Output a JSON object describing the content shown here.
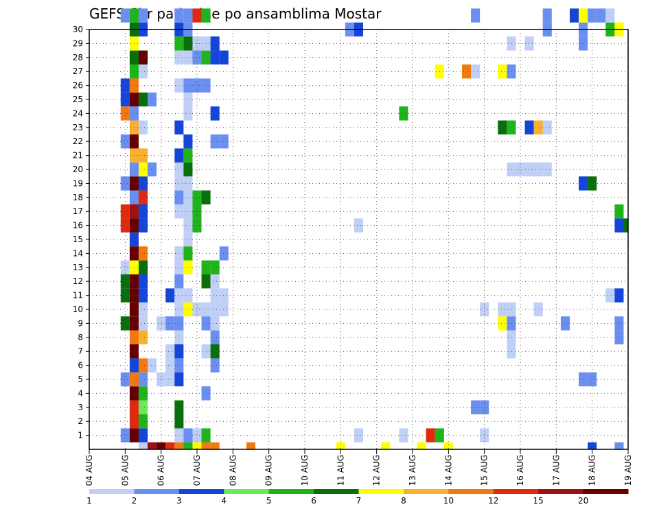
{
  "chart_data": {
    "type": "heatmap",
    "title": "GEFS 6hr padavine po ansamblima Mostar",
    "xlabel": "",
    "ylabel": "",
    "x_ticks": [
      "04 AUG",
      "05 AUG",
      "06 AUG",
      "07 AUG",
      "08 AUG",
      "09 AUG",
      "10 AUG",
      "11 AUG",
      "12 AUG",
      "13 AUG",
      "14 AUG",
      "15 AUG",
      "16 AUG",
      "17 AUG",
      "18 AUG",
      "19 AUG"
    ],
    "y_ticks": [
      "1",
      "2",
      "3",
      "4",
      "5",
      "6",
      "7",
      "8",
      "9",
      "10",
      "11",
      "12",
      "13",
      "14",
      "15",
      "16",
      "17",
      "18",
      "19",
      "20",
      "21",
      "22",
      "23",
      "24",
      "25",
      "26",
      "27",
      "28",
      "29",
      "30"
    ],
    "x_range": [
      0,
      60
    ],
    "y_range": [
      0,
      30
    ],
    "step_per_cell": "6hr",
    "grid": "dotted",
    "colorbar": {
      "placement": "bottom",
      "labels": [
        "1",
        "2",
        "3",
        "4",
        "5",
        "6",
        "7",
        "8",
        "10",
        "12",
        "15",
        "20"
      ],
      "colors": [
        "#bfcff5",
        "#6a8ff0",
        "#1444d8",
        "#6de85a",
        "#1fb31c",
        "#0a6e0a",
        "#ffff00",
        "#f8b030",
        "#f07a10",
        "#e02a10",
        "#a01010",
        "#640000"
      ]
    },
    "cells": [
      [
        6,
        0,
        0
      ],
      [
        7,
        0,
        1
      ],
      [
        7,
        0,
        10
      ],
      [
        8,
        0,
        11
      ],
      [
        9,
        0,
        9
      ],
      [
        10,
        0,
        8
      ],
      [
        11,
        0,
        4
      ],
      [
        12,
        0,
        6
      ],
      [
        13,
        0,
        8
      ],
      [
        14,
        0,
        8
      ],
      [
        18,
        0,
        8
      ],
      [
        28,
        0,
        6
      ],
      [
        33,
        0,
        6
      ],
      [
        37,
        0,
        6
      ],
      [
        40,
        0,
        6
      ],
      [
        56,
        0,
        2
      ],
      [
        59,
        0,
        1
      ],
      [
        4,
        1,
        1
      ],
      [
        5,
        1,
        11
      ],
      [
        6,
        1,
        2
      ],
      [
        10,
        1,
        0
      ],
      [
        11,
        1,
        1
      ],
      [
        12,
        1,
        0
      ],
      [
        13,
        1,
        4
      ],
      [
        30,
        1,
        0
      ],
      [
        35,
        1,
        0
      ],
      [
        38,
        1,
        9
      ],
      [
        39,
        1,
        4
      ],
      [
        44,
        1,
        0
      ],
      [
        5,
        2,
        9
      ],
      [
        6,
        2,
        4
      ],
      [
        10,
        2,
        5
      ],
      [
        5,
        3,
        9
      ],
      [
        6,
        3,
        3
      ],
      [
        10,
        3,
        5
      ],
      [
        43,
        3,
        1
      ],
      [
        44,
        3,
        1
      ],
      [
        5,
        4,
        11
      ],
      [
        6,
        4,
        4
      ],
      [
        13,
        4,
        1
      ],
      [
        4,
        5,
        1
      ],
      [
        5,
        5,
        8
      ],
      [
        6,
        5,
        1
      ],
      [
        8,
        5,
        0
      ],
      [
        9,
        5,
        0
      ],
      [
        10,
        5,
        2
      ],
      [
        55,
        5,
        1
      ],
      [
        56,
        5,
        1
      ],
      [
        5,
        6,
        2
      ],
      [
        6,
        6,
        8
      ],
      [
        7,
        6,
        0
      ],
      [
        9,
        6,
        0
      ],
      [
        10,
        6,
        1
      ],
      [
        14,
        6,
        1
      ],
      [
        5,
        7,
        11
      ],
      [
        9,
        7,
        0
      ],
      [
        10,
        7,
        2
      ],
      [
        13,
        7,
        0
      ],
      [
        14,
        7,
        5
      ],
      [
        47,
        7,
        0
      ],
      [
        5,
        8,
        8
      ],
      [
        6,
        8,
        7
      ],
      [
        10,
        8,
        0
      ],
      [
        14,
        8,
        1
      ],
      [
        47,
        8,
        0
      ],
      [
        59,
        8,
        1
      ],
      [
        4,
        9,
        5
      ],
      [
        5,
        9,
        11
      ],
      [
        6,
        9,
        0
      ],
      [
        8,
        9,
        0
      ],
      [
        9,
        9,
        1
      ],
      [
        10,
        9,
        1
      ],
      [
        13,
        9,
        1
      ],
      [
        14,
        9,
        0
      ],
      [
        46,
        9,
        6
      ],
      [
        47,
        9,
        1
      ],
      [
        53,
        9,
        1
      ],
      [
        59,
        9,
        1
      ],
      [
        5,
        10,
        11
      ],
      [
        6,
        10,
        0
      ],
      [
        10,
        10,
        0
      ],
      [
        11,
        10,
        6
      ],
      [
        12,
        10,
        0
      ],
      [
        13,
        10,
        0
      ],
      [
        14,
        10,
        0
      ],
      [
        15,
        10,
        0
      ],
      [
        44,
        10,
        0
      ],
      [
        46,
        10,
        0
      ],
      [
        47,
        10,
        0
      ],
      [
        50,
        10,
        0
      ],
      [
        4,
        11,
        5
      ],
      [
        5,
        11,
        11
      ],
      [
        6,
        11,
        2
      ],
      [
        9,
        11,
        2
      ],
      [
        10,
        11,
        0
      ],
      [
        11,
        11,
        0
      ],
      [
        14,
        11,
        0
      ],
      [
        15,
        11,
        0
      ],
      [
        58,
        11,
        0
      ],
      [
        59,
        11,
        2
      ],
      [
        4,
        12,
        5
      ],
      [
        5,
        12,
        11
      ],
      [
        6,
        12,
        2
      ],
      [
        10,
        12,
        1
      ],
      [
        13,
        12,
        5
      ],
      [
        14,
        12,
        0
      ],
      [
        4,
        13,
        0
      ],
      [
        5,
        13,
        6
      ],
      [
        6,
        13,
        5
      ],
      [
        10,
        13,
        0
      ],
      [
        11,
        13,
        6
      ],
      [
        13,
        13,
        4
      ],
      [
        14,
        13,
        4
      ],
      [
        5,
        14,
        11
      ],
      [
        6,
        14,
        8
      ],
      [
        10,
        14,
        0
      ],
      [
        11,
        14,
        4
      ],
      [
        15,
        14,
        1
      ],
      [
        5,
        15,
        2
      ],
      [
        11,
        15,
        0
      ],
      [
        4,
        16,
        9
      ],
      [
        5,
        16,
        11
      ],
      [
        6,
        16,
        2
      ],
      [
        11,
        16,
        0
      ],
      [
        12,
        16,
        4
      ],
      [
        30,
        16,
        0
      ],
      [
        59,
        16,
        2
      ],
      [
        60,
        16,
        5
      ],
      [
        4,
        17,
        9
      ],
      [
        5,
        17,
        10
      ],
      [
        6,
        17,
        2
      ],
      [
        10,
        17,
        0
      ],
      [
        11,
        17,
        0
      ],
      [
        12,
        17,
        4
      ],
      [
        59,
        17,
        4
      ],
      [
        5,
        18,
        1
      ],
      [
        6,
        18,
        9
      ],
      [
        10,
        18,
        1
      ],
      [
        11,
        18,
        0
      ],
      [
        12,
        18,
        4
      ],
      [
        13,
        18,
        5
      ],
      [
        4,
        19,
        1
      ],
      [
        5,
        19,
        11
      ],
      [
        6,
        19,
        2
      ],
      [
        10,
        19,
        0
      ],
      [
        11,
        19,
        0
      ],
      [
        55,
        19,
        2
      ],
      [
        56,
        19,
        5
      ],
      [
        5,
        20,
        1
      ],
      [
        6,
        20,
        6
      ],
      [
        7,
        20,
        1
      ],
      [
        10,
        20,
        0
      ],
      [
        11,
        20,
        5
      ],
      [
        47,
        20,
        0
      ],
      [
        48,
        20,
        0
      ],
      [
        49,
        20,
        0
      ],
      [
        50,
        20,
        0
      ],
      [
        51,
        20,
        0
      ],
      [
        5,
        21,
        7
      ],
      [
        6,
        21,
        7
      ],
      [
        10,
        21,
        2
      ],
      [
        11,
        21,
        4
      ],
      [
        4,
        22,
        1
      ],
      [
        5,
        22,
        11
      ],
      [
        11,
        22,
        2
      ],
      [
        14,
        22,
        1
      ],
      [
        15,
        22,
        1
      ],
      [
        5,
        23,
        7
      ],
      [
        6,
        23,
        0
      ],
      [
        10,
        23,
        2
      ],
      [
        46,
        23,
        5
      ],
      [
        47,
        23,
        4
      ],
      [
        49,
        23,
        2
      ],
      [
        50,
        23,
        7
      ],
      [
        51,
        23,
        0
      ],
      [
        4,
        24,
        8
      ],
      [
        5,
        24,
        1
      ],
      [
        11,
        24,
        0
      ],
      [
        14,
        24,
        2
      ],
      [
        35,
        24,
        4
      ],
      [
        4,
        25,
        2
      ],
      [
        5,
        25,
        11
      ],
      [
        6,
        25,
        5
      ],
      [
        7,
        25,
        1
      ],
      [
        11,
        25,
        0
      ],
      [
        4,
        26,
        2
      ],
      [
        5,
        26,
        8
      ],
      [
        10,
        26,
        0
      ],
      [
        11,
        26,
        1
      ],
      [
        12,
        26,
        1
      ],
      [
        13,
        26,
        1
      ],
      [
        5,
        27,
        4
      ],
      [
        6,
        27,
        0
      ],
      [
        39,
        27,
        6
      ],
      [
        42,
        27,
        8
      ],
      [
        43,
        27,
        0
      ],
      [
        46,
        27,
        6
      ],
      [
        47,
        27,
        1
      ],
      [
        5,
        28,
        5
      ],
      [
        6,
        28,
        11
      ],
      [
        10,
        28,
        0
      ],
      [
        11,
        28,
        0
      ],
      [
        12,
        28,
        1
      ],
      [
        13,
        28,
        4
      ],
      [
        14,
        28,
        2
      ],
      [
        15,
        28,
        2
      ],
      [
        5,
        29,
        6
      ],
      [
        10,
        29,
        4
      ],
      [
        11,
        29,
        5
      ],
      [
        12,
        29,
        0
      ],
      [
        13,
        29,
        0
      ],
      [
        14,
        29,
        2
      ],
      [
        47,
        29,
        0
      ],
      [
        49,
        29,
        0
      ],
      [
        55,
        29,
        1
      ],
      [
        5,
        30,
        5
      ],
      [
        6,
        30,
        2
      ],
      [
        10,
        30,
        2
      ],
      [
        11,
        30,
        1
      ],
      [
        29,
        30,
        1
      ],
      [
        30,
        30,
        2
      ],
      [
        51,
        30,
        1
      ],
      [
        55,
        30,
        1
      ],
      [
        58,
        30,
        4
      ],
      [
        59,
        30,
        6
      ],
      [
        4,
        31,
        1
      ],
      [
        5,
        31,
        4
      ],
      [
        6,
        31,
        1
      ],
      [
        10,
        31,
        1
      ],
      [
        11,
        31,
        1
      ],
      [
        12,
        31,
        9
      ],
      [
        13,
        31,
        4
      ],
      [
        43,
        31,
        1
      ],
      [
        51,
        31,
        1
      ],
      [
        54,
        31,
        2
      ],
      [
        55,
        31,
        6
      ],
      [
        56,
        31,
        1
      ],
      [
        57,
        31,
        1
      ],
      [
        58,
        31,
        0
      ]
    ]
  }
}
